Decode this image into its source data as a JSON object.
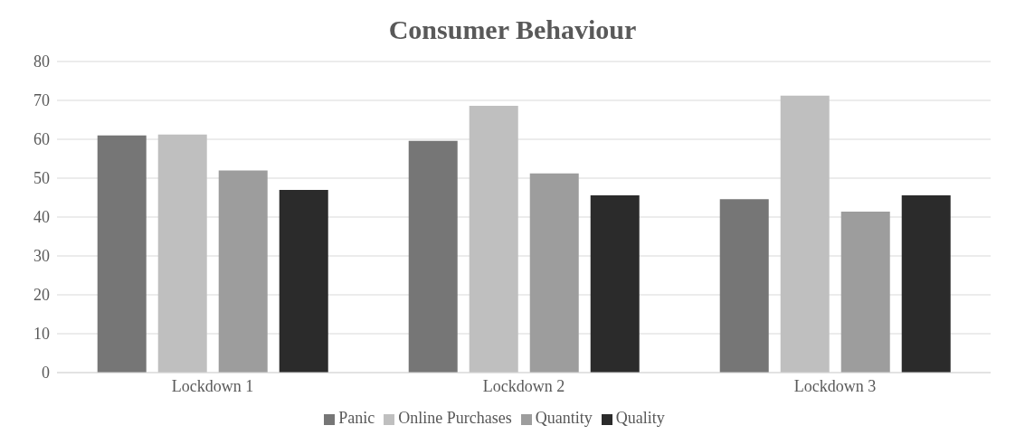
{
  "chart_data": {
    "type": "bar",
    "title": "Consumer Behaviour",
    "categories": [
      "Lockdown 1",
      "Lockdown 2",
      "Lockdown 3"
    ],
    "series": [
      {
        "name": "Panic",
        "color": "#767676",
        "values": [
          61,
          59.6,
          44.6
        ]
      },
      {
        "name": "Online Purchases",
        "color": "#bfbfbf",
        "values": [
          61.2,
          68.6,
          71.2
        ]
      },
      {
        "name": "Quantity",
        "color": "#9d9d9d",
        "values": [
          52,
          51.2,
          41.4
        ]
      },
      {
        "name": "Quality",
        "color": "#2b2b2b",
        "values": [
          47,
          45.6,
          45.6
        ]
      }
    ],
    "ylim": [
      0,
      80
    ],
    "yticks": [
      0,
      10,
      20,
      30,
      40,
      50,
      60,
      70,
      80
    ],
    "grid": "y",
    "legend": "bottom"
  }
}
